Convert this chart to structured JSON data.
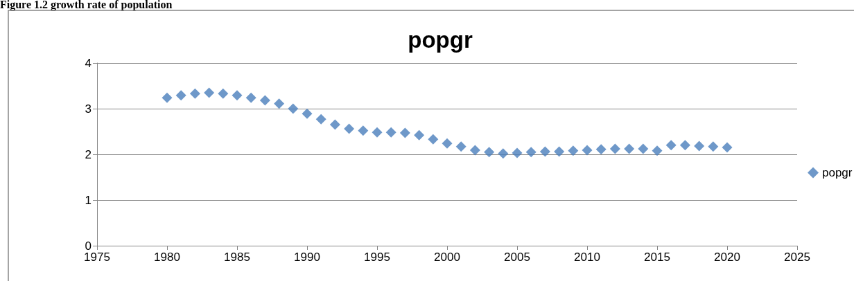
{
  "chart_data": {
    "type": "scatter",
    "title": "popgr",
    "annotations": [
      "Figure 1.2 growth rate of population"
    ],
    "x": [
      1980,
      1981,
      1982,
      1983,
      1984,
      1985,
      1986,
      1987,
      1988,
      1989,
      1990,
      1991,
      1992,
      1993,
      1994,
      1995,
      1996,
      1997,
      1998,
      1999,
      2000,
      2001,
      2002,
      2003,
      2004,
      2005,
      2006,
      2007,
      2008,
      2009,
      2010,
      2011,
      2012,
      2013,
      2014,
      2015,
      2016,
      2017,
      2018,
      2019,
      2020
    ],
    "series": [
      {
        "name": "popgr",
        "color": "#4a7ebb",
        "values": [
          3.24,
          3.29,
          3.33,
          3.35,
          3.33,
          3.29,
          3.24,
          3.18,
          3.11,
          3.0,
          2.89,
          2.77,
          2.65,
          2.56,
          2.52,
          2.48,
          2.48,
          2.47,
          2.42,
          2.33,
          2.24,
          2.17,
          2.09,
          2.05,
          2.02,
          2.03,
          2.05,
          2.06,
          2.06,
          2.08,
          2.09,
          2.11,
          2.12,
          2.12,
          2.12,
          2.08,
          2.2,
          2.2,
          2.18,
          2.17,
          2.15
        ]
      }
    ],
    "xlim": [
      1975,
      2025
    ],
    "xticks": [
      1975,
      1980,
      1985,
      1990,
      1995,
      2000,
      2005,
      2010,
      2015,
      2020,
      2025
    ],
    "ylim": [
      0,
      4
    ],
    "yticks": [
      0,
      1,
      2,
      3,
      4
    ],
    "grid": "y",
    "legend": "right",
    "marker": "diamond"
  }
}
